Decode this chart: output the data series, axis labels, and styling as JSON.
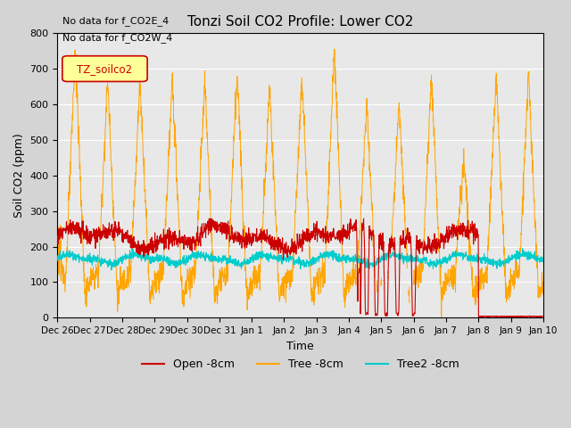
{
  "title": "Tonzi Soil CO2 Profile: Lower CO2",
  "ylabel": "Soil CO2 (ppm)",
  "xlabel": "Time",
  "ylim": [
    0,
    800
  ],
  "xlim": [
    0,
    15
  ],
  "annotations": [
    "No data for f_CO2E_4",
    "No data for f_CO2W_4"
  ],
  "legend_label": "TZ_soilco2",
  "legend_entries": [
    "Open -8cm",
    "Tree -8cm",
    "Tree2 -8cm"
  ],
  "legend_colors": [
    "#cc0000",
    "#ffa500",
    "#00cccc"
  ],
  "tick_labels": [
    "Dec 26",
    "Dec 27",
    "Dec 28",
    "Dec 29",
    "Dec 30",
    "Dec 31",
    "Jan 1",
    "Jan 2",
    "Jan 3",
    "Jan 4",
    "Jan 5",
    "Jan 6",
    "Jan 7",
    "Jan 8",
    "Jan 9",
    "Jan 10"
  ],
  "yticks": [
    0,
    100,
    200,
    300,
    400,
    500,
    600,
    700,
    800
  ],
  "n_points": 2000,
  "fig_bg": "#d4d4d4",
  "ax_bg": "#e8e8e8"
}
